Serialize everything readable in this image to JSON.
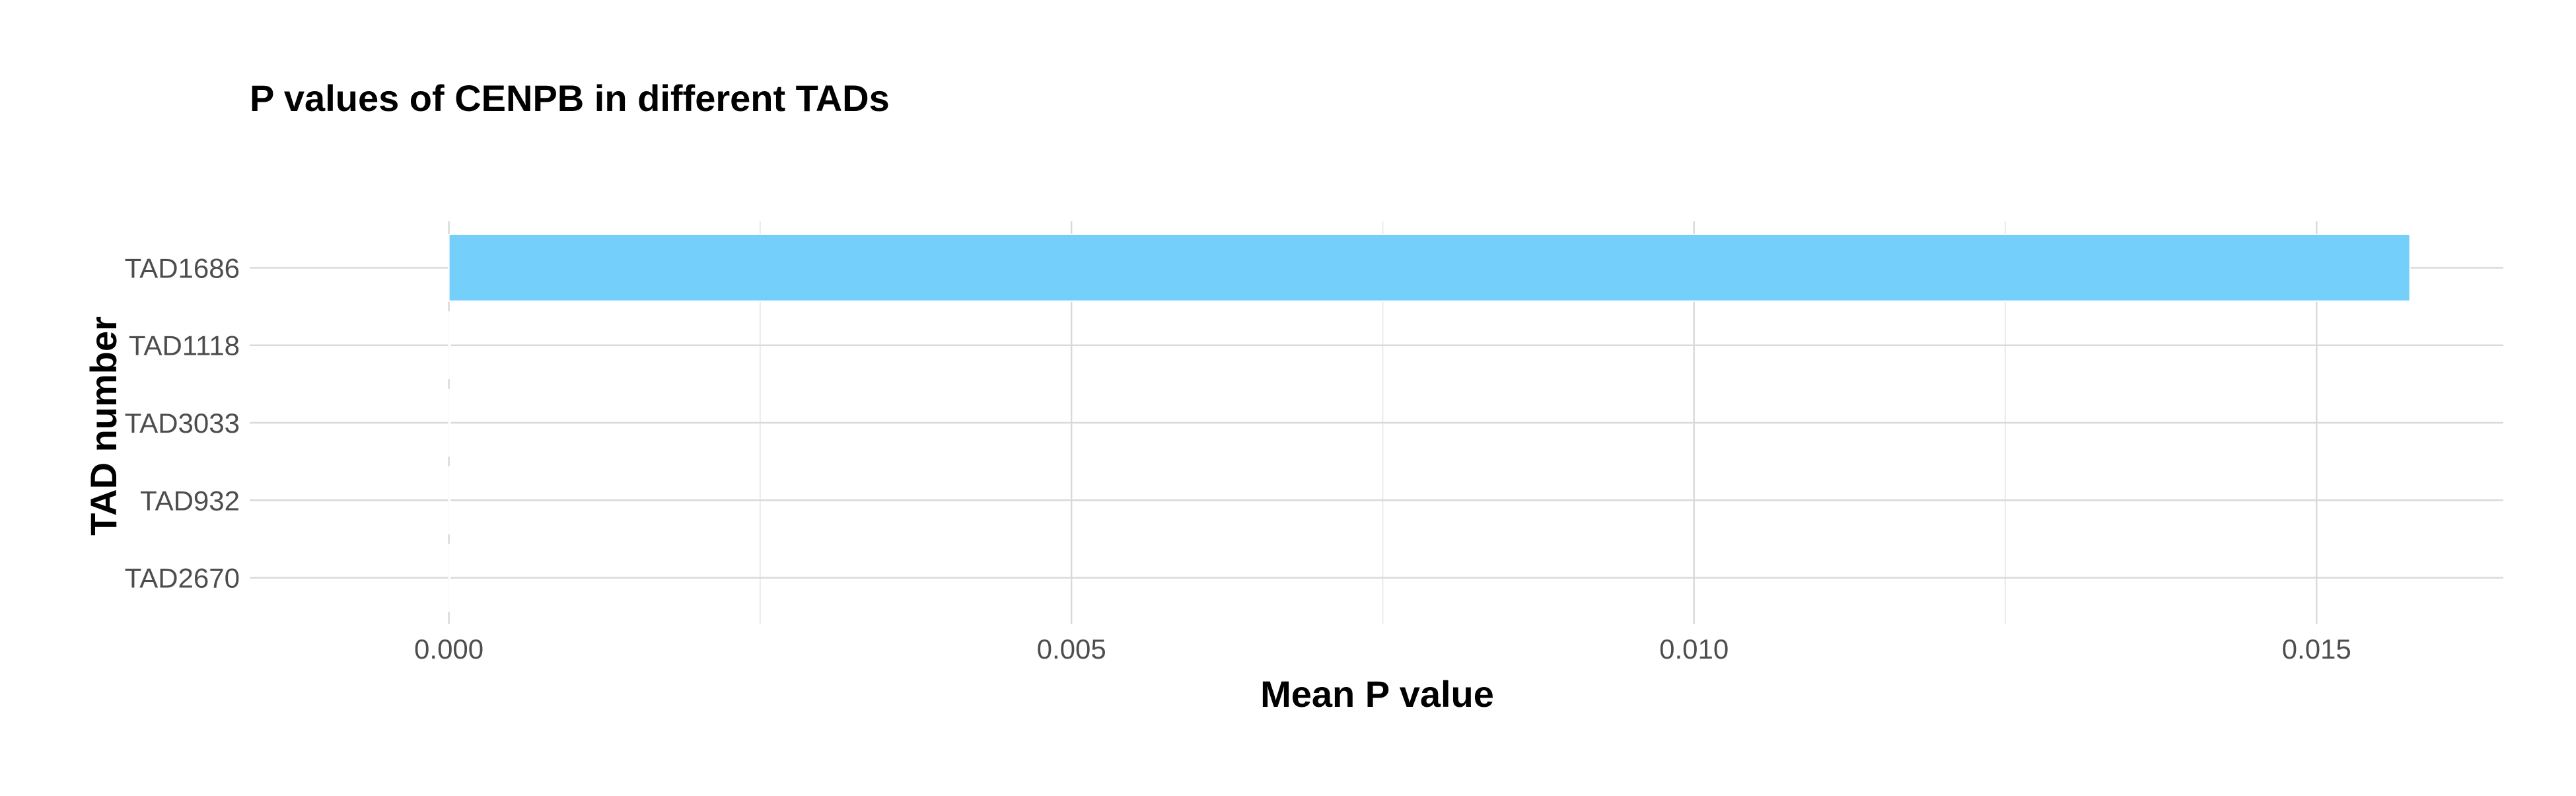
{
  "chart_data": {
    "type": "bar",
    "orientation": "horizontal",
    "title": "P values of CENPB in different TADs",
    "xlabel": "Mean P value",
    "ylabel": "TAD number",
    "categories": [
      "TAD1686",
      "TAD1118",
      "TAD3033",
      "TAD932",
      "TAD2670"
    ],
    "values": [
      0.01575,
      1e-05,
      6e-06,
      4e-06,
      3e-06
    ],
    "xlim": [
      -0.0016,
      0.0165
    ],
    "xticks": [
      0.0,
      0.005,
      0.01,
      0.015
    ],
    "xtick_labels": [
      "0.000",
      "0.005",
      "0.010",
      "0.015"
    ],
    "grid": true,
    "legend": "none",
    "bar_color": "#75CFFB",
    "grid_major_color": "#d9d9d9",
    "grid_minor_color": "#ebebeb"
  }
}
